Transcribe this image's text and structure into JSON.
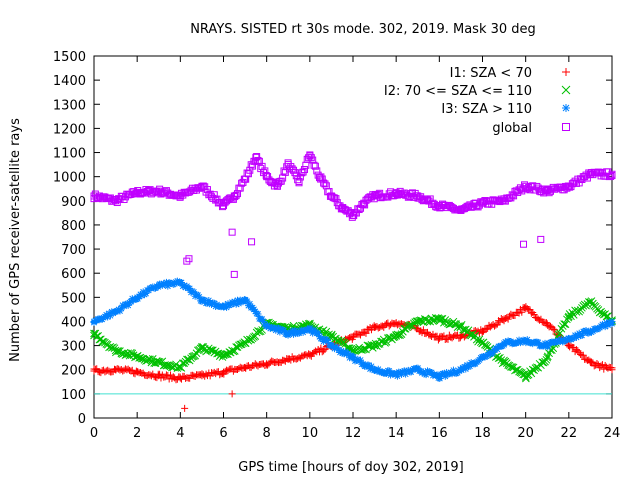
{
  "chart_data": {
    "type": "scatter",
    "title": "NRAYS. SISTED rt 30s mode. 302, 2019. Mask 30 deg",
    "xlabel": "GPS time [hours of doy 302, 2019]",
    "ylabel": "Number of GPS receiver-satellite rays",
    "xlim": [
      0,
      24
    ],
    "ylim": [
      0,
      1500
    ],
    "x_ticks": [
      0,
      2,
      4,
      6,
      8,
      10,
      12,
      14,
      16,
      18,
      20,
      22,
      24
    ],
    "y_ticks": [
      0,
      100,
      200,
      300,
      400,
      500,
      600,
      700,
      800,
      900,
      1000,
      1100,
      1200,
      1300,
      1400,
      1500
    ],
    "legend_position": "top-right",
    "reference_line": {
      "y": 100,
      "color": "#40e0d0"
    },
    "series": [
      {
        "name": "I1: SZA < 70",
        "marker": "+",
        "color": "#ff0000",
        "x": [
          0,
          1,
          2,
          3,
          4,
          5,
          6,
          7,
          8,
          9,
          10,
          11,
          12,
          13,
          14,
          15,
          16,
          17,
          18,
          19,
          20,
          21,
          22,
          23,
          24
        ],
        "y": [
          195,
          200,
          190,
          175,
          165,
          175,
          190,
          210,
          225,
          245,
          260,
          300,
          335,
          375,
          395,
          370,
          330,
          340,
          360,
          410,
          455,
          390,
          300,
          230,
          200
        ]
      },
      {
        "name": "I2: 70 <= SZA <= 110",
        "marker": "x",
        "color": "#00c000",
        "x": [
          0,
          1,
          2,
          3,
          4,
          5,
          6,
          7,
          8,
          9,
          10,
          11,
          12,
          13,
          14,
          15,
          16,
          17,
          18,
          19,
          20,
          21,
          22,
          23,
          24
        ],
        "y": [
          350,
          280,
          255,
          230,
          210,
          290,
          260,
          310,
          390,
          370,
          385,
          340,
          280,
          300,
          340,
          400,
          410,
          380,
          310,
          230,
          170,
          250,
          420,
          480,
          400
        ]
      },
      {
        "name": "I3: SZA > 110",
        "marker": "*",
        "color": "#0080ff",
        "x": [
          0,
          1,
          2,
          3,
          4,
          5,
          6,
          7,
          8,
          9,
          10,
          11,
          12,
          13,
          14,
          15,
          16,
          17,
          18,
          19,
          20,
          21,
          22,
          23,
          24
        ],
        "y": [
          400,
          440,
          500,
          550,
          560,
          490,
          460,
          490,
          380,
          350,
          370,
          300,
          250,
          200,
          180,
          200,
          170,
          200,
          250,
          310,
          320,
          300,
          330,
          360,
          400
        ]
      },
      {
        "name": "global",
        "marker": "square",
        "color": "#c000ff",
        "x": [
          0,
          1,
          2,
          3,
          4,
          5,
          6,
          6.5,
          7,
          7.5,
          8,
          8.5,
          9,
          9.5,
          10,
          10.5,
          11,
          11.5,
          12,
          12.5,
          13,
          14,
          15,
          16,
          17,
          18,
          19,
          20,
          21,
          22,
          23,
          24
        ],
        "y": [
          920,
          900,
          935,
          940,
          920,
          960,
          880,
          920,
          990,
          1080,
          1000,
          960,
          1050,
          980,
          1090,
          990,
          920,
          870,
          840,
          890,
          920,
          930,
          920,
          880,
          860,
          890,
          900,
          960,
          940,
          960,
          1010,
          1010
        ]
      }
    ],
    "outliers": [
      {
        "series": "I1: SZA < 70",
        "x": 4.2,
        "y": 40
      },
      {
        "series": "I1: SZA < 70",
        "x": 6.4,
        "y": 100
      },
      {
        "series": "global",
        "x": 4.3,
        "y": 650
      },
      {
        "series": "global",
        "x": 4.4,
        "y": 660
      },
      {
        "series": "global",
        "x": 6.5,
        "y": 595
      },
      {
        "series": "global",
        "x": 7.3,
        "y": 730
      },
      {
        "series": "global",
        "x": 6.4,
        "y": 770
      },
      {
        "series": "global",
        "x": 19.9,
        "y": 720
      },
      {
        "series": "global",
        "x": 20.7,
        "y": 740
      }
    ]
  }
}
